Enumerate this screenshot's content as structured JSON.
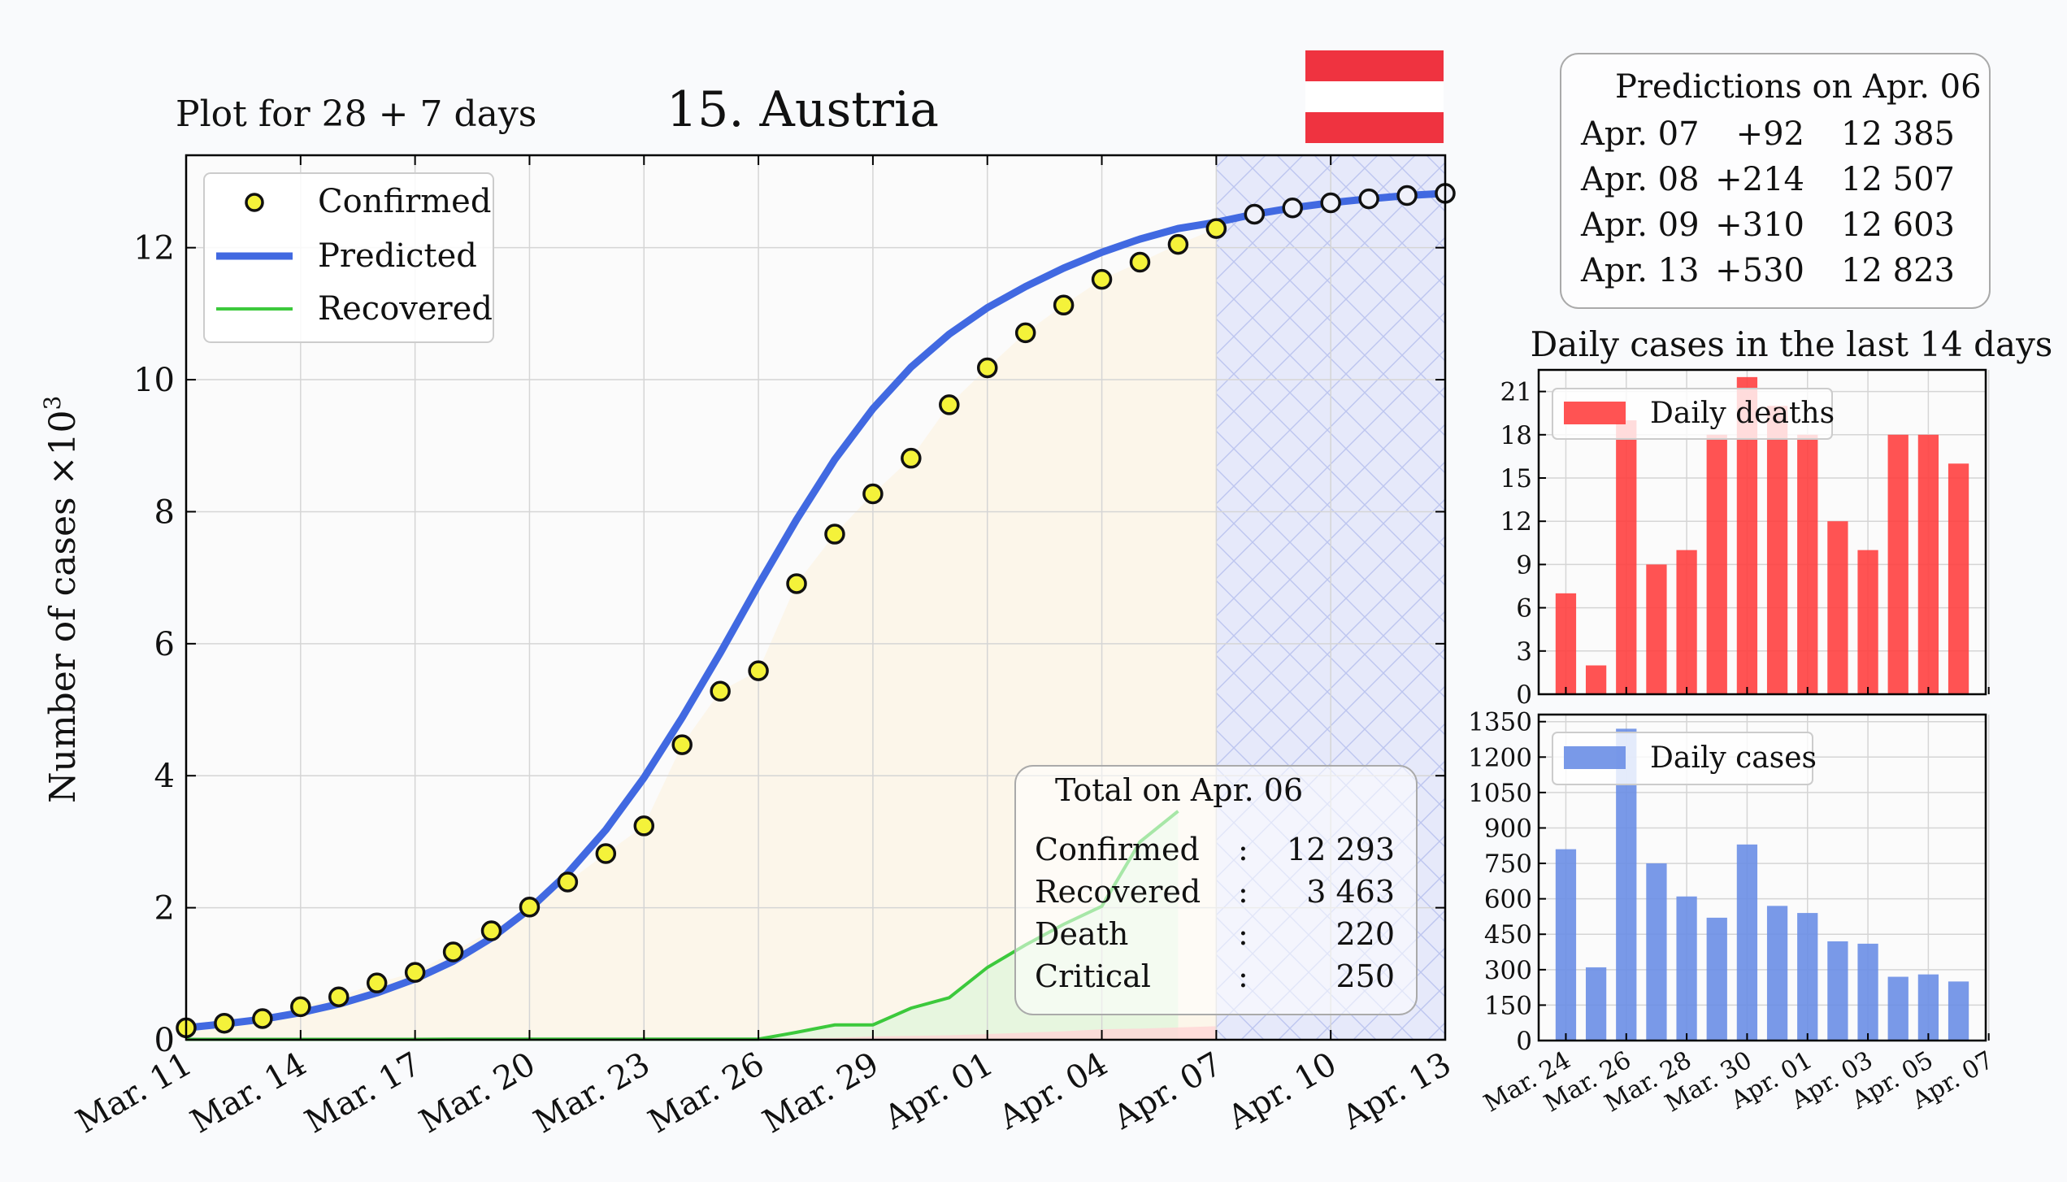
{
  "header": {
    "subtitle": "Plot for 28 + 7 days",
    "title": "15. Austria"
  },
  "flag": {
    "name": "austria-flag",
    "colors": [
      "#ef3340",
      "#ffffff",
      "#ef3340"
    ]
  },
  "main_chart": {
    "ylabel": "Number of cases ×10",
    "ylabel_exp": "3",
    "legend": [
      "Confirmed",
      "Predicted",
      "Recovered"
    ],
    "xtick_labels": [
      "Mar. 11",
      "Mar. 14",
      "Mar. 17",
      "Mar. 20",
      "Mar. 23",
      "Mar. 26",
      "Mar. 29",
      "Apr. 01",
      "Apr. 04",
      "Apr. 07",
      "Apr. 10",
      "Apr. 13"
    ],
    "ytick_labels": [
      "0",
      "2",
      "4",
      "6",
      "8",
      "10",
      "12"
    ]
  },
  "totals": {
    "title": "Total on Apr. 06",
    "rows": [
      {
        "label": "Confirmed",
        "sep": ":",
        "value": "12 293"
      },
      {
        "label": "Recovered",
        "sep": ":",
        "value": "3 463"
      },
      {
        "label": "Death",
        "sep": ":",
        "value": "220"
      },
      {
        "label": "Critical",
        "sep": ":",
        "value": "250"
      }
    ]
  },
  "predictions": {
    "title": "Predictions on Apr. 06",
    "rows": [
      {
        "date": "Apr. 07",
        "delta": "+92",
        "total": "12 385"
      },
      {
        "date": "Apr. 08",
        "delta": "+214",
        "total": "12 507"
      },
      {
        "date": "Apr. 09",
        "delta": "+310",
        "total": "12 603"
      },
      {
        "date": "Apr. 13",
        "delta": "+530",
        "total": "12 823"
      }
    ]
  },
  "daily_title": "Daily cases in the last 14 days",
  "colors": {
    "confirmed_fill": "#f4f23a",
    "predicted": "#4169e1",
    "recovered": "#3cc93c",
    "deaths": "#ff4040",
    "cases": "#6a8ee6",
    "forecast_band": "#e6e9fa"
  },
  "chart_data": [
    {
      "type": "line",
      "name": "cumulative-cases",
      "x_dates": [
        "Mar. 11",
        "Mar. 12",
        "Mar. 13",
        "Mar. 14",
        "Mar. 15",
        "Mar. 16",
        "Mar. 17",
        "Mar. 18",
        "Mar. 19",
        "Mar. 20",
        "Mar. 21",
        "Mar. 22",
        "Mar. 23",
        "Mar. 24",
        "Mar. 25",
        "Mar. 26",
        "Mar. 27",
        "Mar. 28",
        "Mar. 29",
        "Mar. 30",
        "Mar. 31",
        "Apr. 01",
        "Apr. 02",
        "Apr. 03",
        "Apr. 04",
        "Apr. 05",
        "Apr. 06",
        "Apr. 07",
        "Apr. 08",
        "Apr. 09",
        "Apr. 10",
        "Apr. 11",
        "Apr. 12",
        "Apr. 13"
      ],
      "ylabel": "Number of cases ×10^3",
      "ylim": [
        0,
        13.4
      ],
      "yticks": [
        0,
        2,
        4,
        6,
        8,
        10,
        12
      ],
      "legend_position": "top-left",
      "grid": true,
      "series": [
        {
          "name": "Confirmed",
          "style": "markers",
          "y": [
            0.18,
            0.25,
            0.32,
            0.5,
            0.65,
            0.86,
            1.02,
            1.33,
            1.65,
            2.01,
            2.39,
            2.82,
            3.24,
            4.47,
            5.28,
            5.59,
            6.91,
            7.66,
            8.27,
            8.81,
            9.62,
            10.18,
            10.71,
            11.13,
            11.52,
            11.78,
            12.05,
            12.29
          ]
        },
        {
          "name": "Predicted",
          "style": "line",
          "y": [
            0.18,
            0.24,
            0.31,
            0.41,
            0.54,
            0.71,
            0.92,
            1.19,
            1.54,
            1.98,
            2.52,
            3.18,
            3.97,
            4.88,
            5.86,
            6.89,
            7.88,
            8.79,
            9.56,
            10.19,
            10.69,
            11.09,
            11.41,
            11.69,
            11.93,
            12.13,
            12.29,
            12.385,
            12.507,
            12.603,
            12.68,
            12.74,
            12.79,
            12.823
          ]
        },
        {
          "name": "Recovered",
          "style": "line",
          "y": [
            0.006,
            0.006,
            0.006,
            0.006,
            0.006,
            0.006,
            0.006,
            0.009,
            0.009,
            0.009,
            0.009,
            0.009,
            0.009,
            0.009,
            0.009,
            0.009,
            0.112,
            0.225,
            0.225,
            0.479,
            0.636,
            1.095,
            1.436,
            1.749,
            2.022,
            2.998,
            3.463
          ]
        },
        {
          "name": "Deaths",
          "style": "area",
          "y": [
            0,
            0,
            0,
            0,
            0,
            0,
            0,
            0.001,
            0.001,
            0.001,
            0.001,
            0.002,
            0.003,
            0.006,
            0.008,
            0.016,
            0.021,
            0.028,
            0.049,
            0.058,
            0.068,
            0.086,
            0.108,
            0.128,
            0.158,
            0.168,
            0.186,
            0.204,
            0.22
          ]
        }
      ]
    },
    {
      "type": "bar",
      "name": "daily-deaths",
      "legend": "Daily deaths",
      "categories": [
        "Mar. 24",
        "Mar. 25",
        "Mar. 26",
        "Mar. 27",
        "Mar. 28",
        "Mar. 29",
        "Mar. 30",
        "Mar. 31",
        "Apr. 01",
        "Apr. 02",
        "Apr. 03",
        "Apr. 04",
        "Apr. 05",
        "Apr. 06"
      ],
      "values": [
        7,
        2,
        19,
        9,
        10,
        18,
        22,
        20,
        18,
        12,
        10,
        18,
        18,
        16
      ],
      "ylim": [
        0,
        22.5
      ],
      "yticks": [
        0,
        3,
        6,
        9,
        12,
        15,
        18,
        21
      ],
      "xtick_labels": [
        "Mar. 24",
        "Mar. 26",
        "Mar. 28",
        "Mar. 30",
        "Apr. 01",
        "Apr. 03",
        "Apr. 05",
        "Apr. 07"
      ]
    },
    {
      "type": "bar",
      "name": "daily-cases",
      "legend": "Daily cases",
      "categories": [
        "Mar. 24",
        "Mar. 25",
        "Mar. 26",
        "Mar. 27",
        "Mar. 28",
        "Mar. 29",
        "Mar. 30",
        "Mar. 31",
        "Apr. 01",
        "Apr. 02",
        "Apr. 03",
        "Apr. 04",
        "Apr. 05",
        "Apr. 06"
      ],
      "values": [
        810,
        310,
        1320,
        750,
        610,
        520,
        830,
        570,
        540,
        420,
        410,
        270,
        280,
        250
      ],
      "ylim": [
        0,
        1380
      ],
      "yticks": [
        0,
        150,
        300,
        450,
        600,
        750,
        900,
        1050,
        1200,
        1350
      ],
      "xtick_labels": [
        "Mar. 24",
        "Mar. 26",
        "Mar. 28",
        "Mar. 30",
        "Apr. 01",
        "Apr. 03",
        "Apr. 05",
        "Apr. 07"
      ]
    }
  ]
}
